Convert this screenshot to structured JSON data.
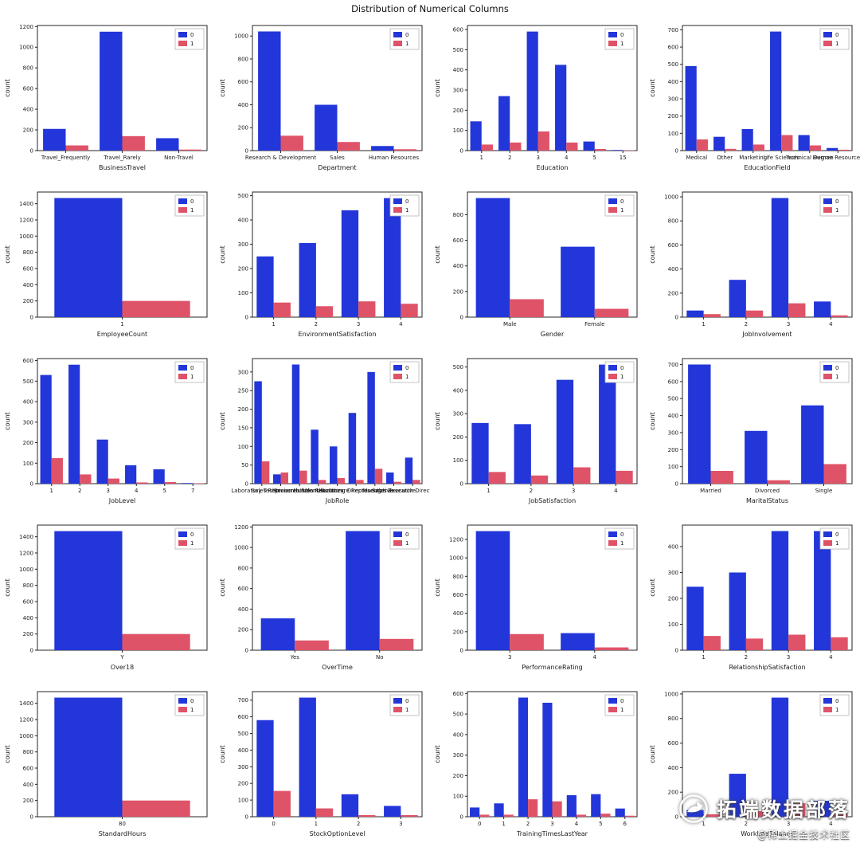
{
  "figure": {
    "title": "Distribution of Numerical Columns",
    "ylabel": "count",
    "legend_labels": [
      "0",
      "1"
    ],
    "colors": {
      "series0": "#2236d9",
      "series1": "#df5368",
      "axis": "#262626",
      "tick_label": "#1a1a1a",
      "legend_border": "#b5b5b5",
      "background": "#ffffff"
    }
  },
  "watermark": {
    "title": "拓端数据部落",
    "subtitle": "@稀土掘金技术社区"
  },
  "chart_data": [
    {
      "type": "bar",
      "xlabel": "BusinessTravel",
      "ylabel": "count",
      "legend": [
        "0",
        "1"
      ],
      "legend_position": "upper right",
      "categories": [
        "Travel_Frequently",
        "Travel_Rarely",
        "Non-Travel"
      ],
      "series": [
        {
          "name": "0",
          "values": [
            210,
            1150,
            120
          ]
        },
        {
          "name": "1",
          "values": [
            50,
            140,
            10
          ]
        }
      ],
      "yticks": [
        0,
        200,
        400,
        600,
        800,
        1000,
        1200
      ],
      "ylim": [
        0,
        1210
      ]
    },
    {
      "type": "bar",
      "xlabel": "Department",
      "ylabel": "count",
      "legend": [
        "0",
        "1"
      ],
      "legend_position": "upper right",
      "categories": [
        "Research & Development",
        "Sales",
        "Human Resources"
      ],
      "series": [
        {
          "name": "0",
          "values": [
            1040,
            400,
            40
          ]
        },
        {
          "name": "1",
          "values": [
            130,
            75,
            12
          ]
        }
      ],
      "yticks": [
        0,
        200,
        400,
        600,
        800,
        1000
      ],
      "ylim": [
        0,
        1092
      ]
    },
    {
      "type": "bar",
      "xlabel": "Education",
      "ylabel": "count",
      "legend": [
        "0",
        "1"
      ],
      "legend_position": "upper right",
      "categories": [
        "1",
        "2",
        "3",
        "4",
        "5",
        "15"
      ],
      "series": [
        {
          "name": "0",
          "values": [
            145,
            270,
            590,
            425,
            45,
            3
          ]
        },
        {
          "name": "1",
          "values": [
            30,
            40,
            95,
            40,
            8,
            2
          ]
        }
      ],
      "yticks": [
        0,
        100,
        200,
        300,
        400,
        500,
        600
      ],
      "ylim": [
        0,
        620
      ]
    },
    {
      "type": "bar",
      "xlabel": "EducationField",
      "ylabel": "count",
      "legend": [
        "0",
        "1"
      ],
      "legend_position": "upper right",
      "categories": [
        "Medical",
        "Other",
        "Marketing",
        "Life Sciences",
        "Technical Degree",
        "Human Resources"
      ],
      "series": [
        {
          "name": "0",
          "values": [
            490,
            80,
            125,
            690,
            90,
            15
          ]
        },
        {
          "name": "1",
          "values": [
            65,
            10,
            35,
            90,
            30,
            5
          ]
        }
      ],
      "yticks": [
        0,
        100,
        200,
        300,
        400,
        500,
        600,
        700
      ],
      "ylim": [
        0,
        725
      ]
    },
    {
      "type": "bar",
      "xlabel": "EmployeeCount",
      "ylabel": "count",
      "legend": [
        "0",
        "1"
      ],
      "legend_position": "upper right",
      "categories": [
        "1"
      ],
      "series": [
        {
          "name": "0",
          "values": [
            1470
          ]
        },
        {
          "name": "1",
          "values": [
            200
          ]
        }
      ],
      "yticks": [
        0,
        200,
        400,
        600,
        800,
        1000,
        1200,
        1400
      ],
      "ylim": [
        0,
        1544
      ]
    },
    {
      "type": "bar",
      "xlabel": "EnvironmentSatisfaction",
      "ylabel": "count",
      "legend": [
        "0",
        "1"
      ],
      "legend_position": "upper right",
      "categories": [
        "1",
        "2",
        "3",
        "4"
      ],
      "series": [
        {
          "name": "0",
          "values": [
            250,
            305,
            440,
            490
          ]
        },
        {
          "name": "1",
          "values": [
            60,
            45,
            65,
            55
          ]
        }
      ],
      "yticks": [
        0,
        100,
        200,
        300,
        400,
        500
      ],
      "ylim": [
        0,
        515
      ]
    },
    {
      "type": "bar",
      "xlabel": "Gender",
      "ylabel": "count",
      "legend": [
        "0",
        "1"
      ],
      "legend_position": "upper right",
      "categories": [
        "Male",
        "Female"
      ],
      "series": [
        {
          "name": "0",
          "values": [
            930,
            550
          ]
        },
        {
          "name": "1",
          "values": [
            140,
            65
          ]
        }
      ],
      "yticks": [
        0,
        200,
        400,
        600,
        800
      ],
      "ylim": [
        0,
        977
      ]
    },
    {
      "type": "bar",
      "xlabel": "JobInvolvement",
      "ylabel": "count",
      "legend": [
        "0",
        "1"
      ],
      "legend_position": "upper right",
      "categories": [
        "1",
        "2",
        "3",
        "4"
      ],
      "series": [
        {
          "name": "0",
          "values": [
            55,
            310,
            990,
            130
          ]
        },
        {
          "name": "1",
          "values": [
            25,
            55,
            115,
            15
          ]
        }
      ],
      "yticks": [
        0,
        200,
        400,
        600,
        800,
        1000
      ],
      "ylim": [
        0,
        1040
      ]
    },
    {
      "type": "bar",
      "xlabel": "JobLevel",
      "ylabel": "count",
      "legend": [
        "0",
        "1"
      ],
      "legend_position": "upper right",
      "categories": [
        "1",
        "2",
        "3",
        "4",
        "5",
        "7"
      ],
      "series": [
        {
          "name": "0",
          "values": [
            530,
            580,
            215,
            90,
            70,
            3
          ]
        },
        {
          "name": "1",
          "values": [
            125,
            45,
            25,
            6,
            8,
            2
          ]
        }
      ],
      "yticks": [
        0,
        100,
        200,
        300,
        400,
        500,
        600
      ],
      "ylim": [
        0,
        610
      ]
    },
    {
      "type": "bar",
      "xlabel": "JobRole",
      "ylabel": "count",
      "legend": [
        "0",
        "1"
      ],
      "legend_position": "upper right",
      "categories": [
        "Laboratory Technician",
        "Sales Representative",
        "Research Scientist",
        "Human Resources",
        "Manufacturing Director",
        "Healthcare Representative",
        "Manager",
        "Sales Executive",
        "Research Director"
      ],
      "series": [
        {
          "name": "0",
          "values": [
            275,
            25,
            320,
            145,
            100,
            190,
            300,
            30,
            70
          ]
        },
        {
          "name": "1",
          "values": [
            60,
            30,
            35,
            10,
            15,
            10,
            40,
            5,
            10
          ]
        }
      ],
      "yticks": [
        0,
        50,
        100,
        150,
        200,
        250,
        300
      ],
      "ylim": [
        0,
        336
      ]
    },
    {
      "type": "bar",
      "xlabel": "JobSatisfaction",
      "ylabel": "count",
      "legend": [
        "0",
        "1"
      ],
      "legend_position": "upper right",
      "categories": [
        "1",
        "2",
        "3",
        "4"
      ],
      "series": [
        {
          "name": "0",
          "values": [
            260,
            255,
            445,
            510
          ]
        },
        {
          "name": "1",
          "values": [
            50,
            35,
            70,
            55
          ]
        }
      ],
      "yticks": [
        0,
        100,
        200,
        300,
        400,
        500
      ],
      "ylim": [
        0,
        536
      ]
    },
    {
      "type": "bar",
      "xlabel": "MaritalStatus",
      "ylabel": "count",
      "legend": [
        "0",
        "1"
      ],
      "legend_position": "upper right",
      "categories": [
        "Married",
        "Divorced",
        "Single"
      ],
      "series": [
        {
          "name": "0",
          "values": [
            700,
            310,
            460
          ]
        },
        {
          "name": "1",
          "values": [
            75,
            20,
            115
          ]
        }
      ],
      "yticks": [
        0,
        100,
        200,
        300,
        400,
        500,
        600,
        700
      ],
      "ylim": [
        0,
        735
      ]
    },
    {
      "type": "bar",
      "xlabel": "Over18",
      "ylabel": "count",
      "legend": [
        "0",
        "1"
      ],
      "legend_position": "upper right",
      "categories": [
        "Y"
      ],
      "series": [
        {
          "name": "0",
          "values": [
            1470
          ]
        },
        {
          "name": "1",
          "values": [
            200
          ]
        }
      ],
      "yticks": [
        0,
        200,
        400,
        600,
        800,
        1000,
        1200,
        1400
      ],
      "ylim": [
        0,
        1544
      ]
    },
    {
      "type": "bar",
      "xlabel": "OverTime",
      "ylabel": "count",
      "legend": [
        "0",
        "1"
      ],
      "legend_position": "upper right",
      "categories": [
        "Yes",
        "No"
      ],
      "series": [
        {
          "name": "0",
          "values": [
            310,
            1160
          ]
        },
        {
          "name": "1",
          "values": [
            95,
            110
          ]
        }
      ],
      "yticks": [
        0,
        200,
        400,
        600,
        800,
        1000,
        1200
      ],
      "ylim": [
        0,
        1218
      ]
    },
    {
      "type": "bar",
      "xlabel": "PerformanceRating",
      "ylabel": "count",
      "legend": [
        "0",
        "1"
      ],
      "legend_position": "upper right",
      "categories": [
        "3",
        "4"
      ],
      "series": [
        {
          "name": "0",
          "values": [
            1290,
            185
          ]
        },
        {
          "name": "1",
          "values": [
            175,
            30
          ]
        }
      ],
      "yticks": [
        0,
        200,
        400,
        600,
        800,
        1000,
        1200
      ],
      "ylim": [
        0,
        1355
      ]
    },
    {
      "type": "bar",
      "xlabel": "RelationshipSatisfaction",
      "ylabel": "count",
      "legend": [
        "0",
        "1"
      ],
      "legend_position": "upper right",
      "categories": [
        "1",
        "2",
        "3",
        "4"
      ],
      "series": [
        {
          "name": "0",
          "values": [
            245,
            300,
            460,
            460
          ]
        },
        {
          "name": "1",
          "values": [
            55,
            45,
            60,
            50
          ]
        }
      ],
      "yticks": [
        0,
        100,
        200,
        300,
        400
      ],
      "ylim": [
        0,
        483
      ]
    },
    {
      "type": "bar",
      "xlabel": "StandardHours",
      "ylabel": "count",
      "legend": [
        "0",
        "1"
      ],
      "legend_position": "upper right",
      "categories": [
        "80"
      ],
      "series": [
        {
          "name": "0",
          "values": [
            1470
          ]
        },
        {
          "name": "1",
          "values": [
            200
          ]
        }
      ],
      "yticks": [
        0,
        200,
        400,
        600,
        800,
        1000,
        1200,
        1400
      ],
      "ylim": [
        0,
        1544
      ]
    },
    {
      "type": "bar",
      "xlabel": "StockOptionLevel",
      "ylabel": "count",
      "legend": [
        "0",
        "1"
      ],
      "legend_position": "upper right",
      "categories": [
        "0",
        "1",
        "2",
        "3"
      ],
      "series": [
        {
          "name": "0",
          "values": [
            580,
            715,
            135,
            65
          ]
        },
        {
          "name": "1",
          "values": [
            155,
            50,
            10,
            10
          ]
        }
      ],
      "yticks": [
        0,
        100,
        200,
        300,
        400,
        500,
        600,
        700
      ],
      "ylim": [
        0,
        751
      ]
    },
    {
      "type": "bar",
      "xlabel": "TrainingTimesLastYear",
      "ylabel": "count",
      "legend": [
        "0",
        "1"
      ],
      "legend_position": "upper right",
      "categories": [
        "0",
        "1",
        "2",
        "3",
        "4",
        "5",
        "6"
      ],
      "series": [
        {
          "name": "0",
          "values": [
            45,
            65,
            580,
            555,
            105,
            110,
            40
          ]
        },
        {
          "name": "1",
          "values": [
            10,
            10,
            85,
            75,
            10,
            15,
            5
          ]
        }
      ],
      "yticks": [
        0,
        100,
        200,
        300,
        400,
        500,
        600
      ],
      "ylim": [
        0,
        609
      ]
    },
    {
      "type": "bar",
      "xlabel": "WorkLifeBalance",
      "ylabel": "count",
      "legend": [
        "0",
        "1"
      ],
      "legend_position": "upper right",
      "categories": [
        "1",
        "2",
        "3",
        "4"
      ],
      "series": [
        {
          "name": "0",
          "values": [
            55,
            350,
            970,
            130
          ]
        },
        {
          "name": "1",
          "values": [
            20,
            45,
            110,
            25
          ]
        }
      ],
      "yticks": [
        0,
        200,
        400,
        600,
        800,
        1000
      ],
      "ylim": [
        0,
        1019
      ]
    }
  ]
}
